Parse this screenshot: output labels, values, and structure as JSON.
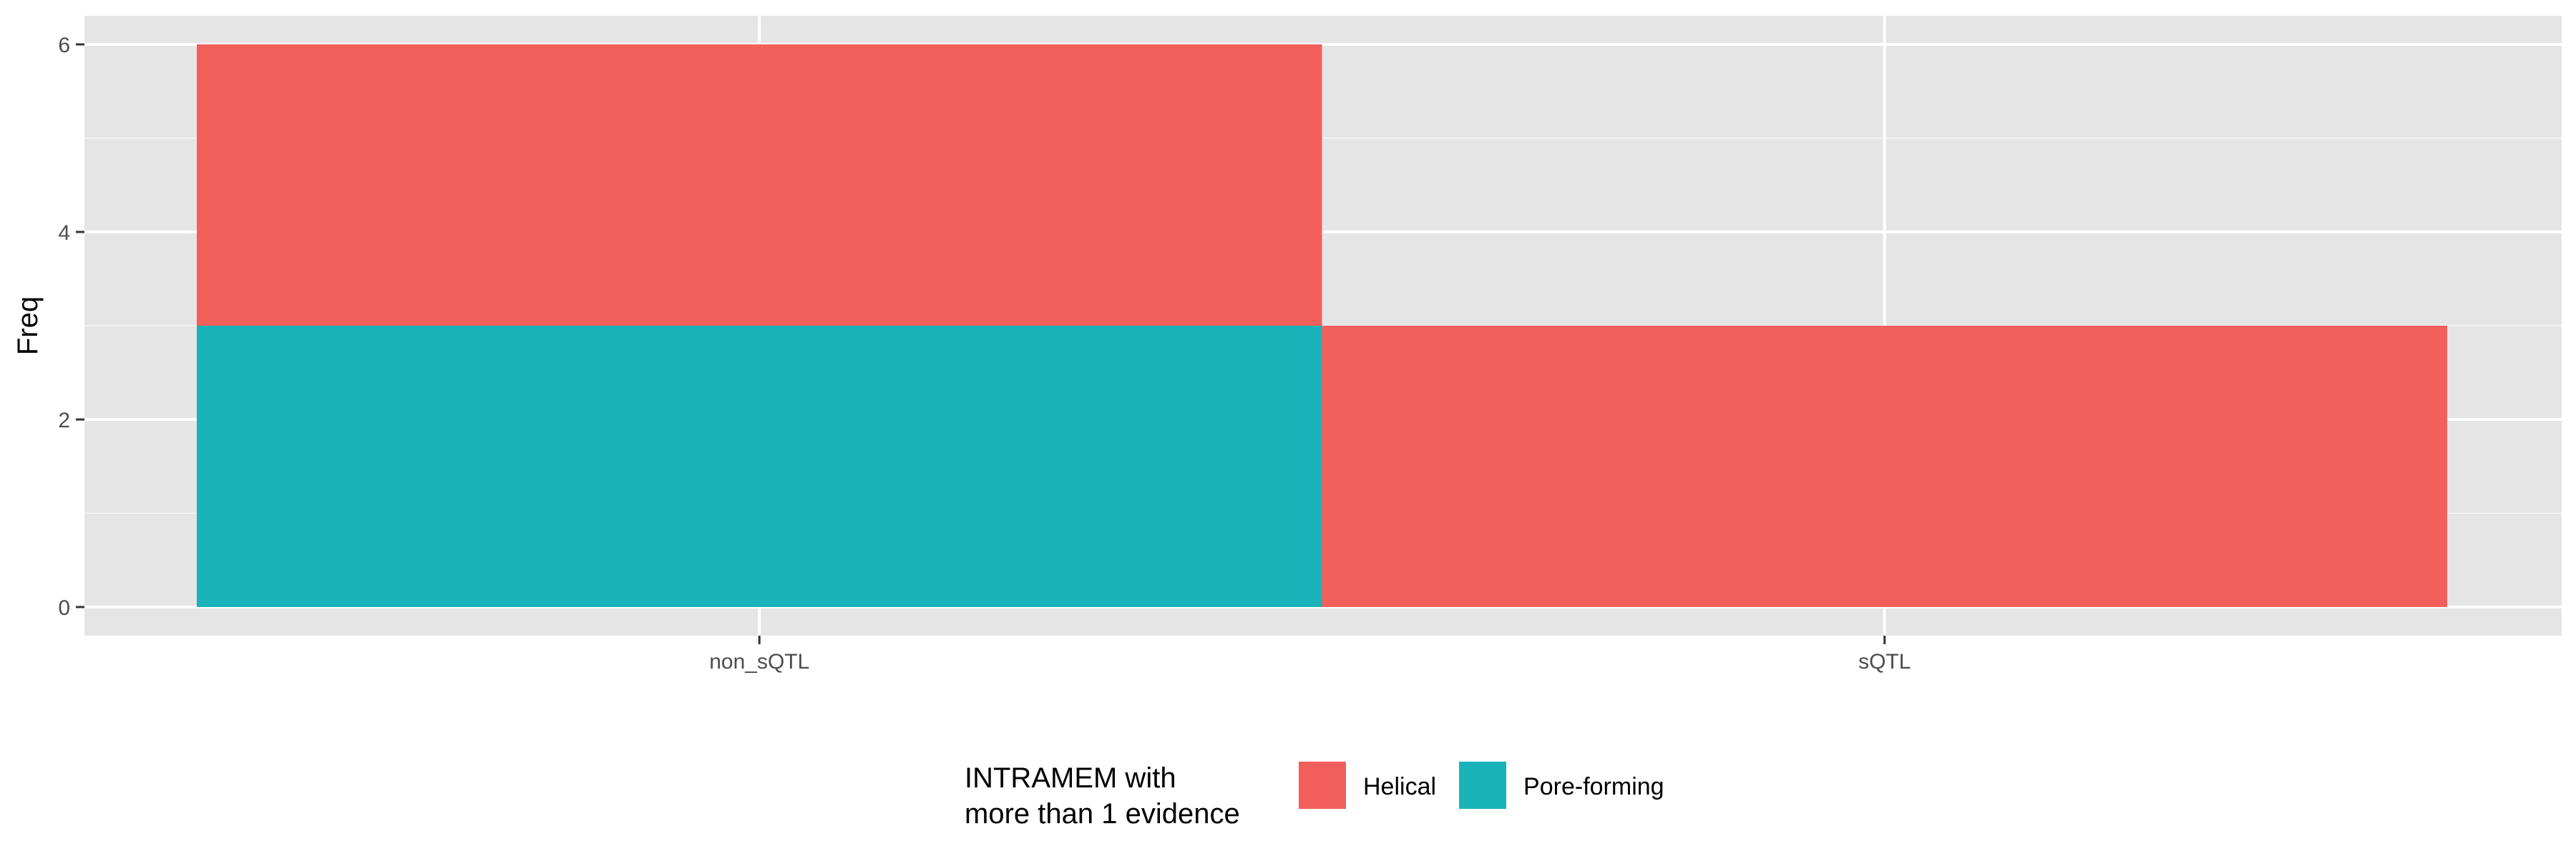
{
  "chart_data": {
    "type": "bar",
    "stacked": true,
    "categories": [
      "non_sQTL",
      "sQTL"
    ],
    "series": [
      {
        "name": "Helical",
        "values": [
          3,
          3
        ],
        "color": "#F35F5B"
      },
      {
        "name": "Pore-forming",
        "values": [
          3,
          0
        ],
        "color": "#19B3B9"
      }
    ],
    "xlabel": "",
    "ylabel": "Freq",
    "ylim": [
      0,
      6.3
    ],
    "yticks": [
      0,
      2,
      4,
      6
    ],
    "grid": true,
    "panel_color": "#E5E5E5",
    "legend": {
      "position": "bottom",
      "title_lines": [
        "INTRAMEM with",
        "more than 1 evidence"
      ]
    }
  }
}
